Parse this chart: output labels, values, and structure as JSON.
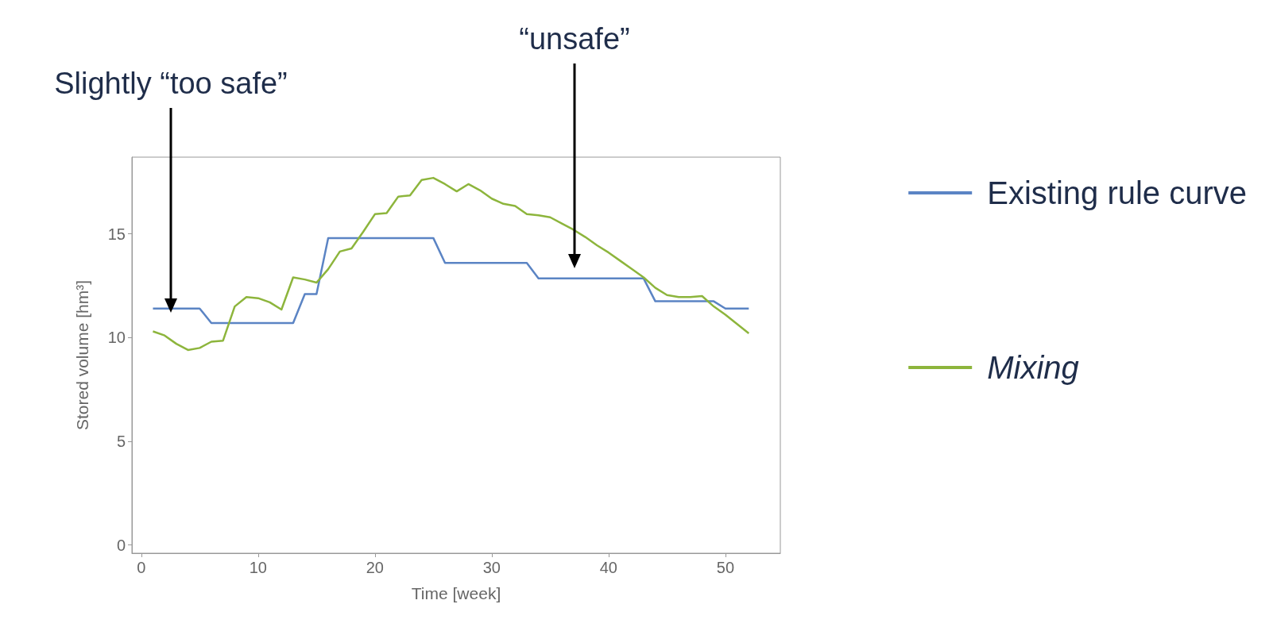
{
  "chart_data": {
    "type": "line",
    "xlabel": "Time [week]",
    "ylabel": "Stored volume [hm³]",
    "x": [
      1,
      2,
      3,
      4,
      5,
      6,
      7,
      8,
      9,
      10,
      11,
      12,
      13,
      14,
      15,
      16,
      17,
      18,
      19,
      20,
      21,
      22,
      23,
      24,
      25,
      26,
      27,
      28,
      29,
      30,
      31,
      32,
      33,
      34,
      35,
      36,
      37,
      38,
      39,
      40,
      41,
      42,
      43,
      44,
      45,
      46,
      47,
      48,
      49,
      50,
      51,
      52
    ],
    "series": [
      {
        "name": "Existing rule curve",
        "color": "#5b84c4",
        "values": [
          11.4,
          11.4,
          11.4,
          11.4,
          11.4,
          10.7,
          10.7,
          10.7,
          10.7,
          10.7,
          10.7,
          10.7,
          10.7,
          12.1,
          12.1,
          14.8,
          14.8,
          14.8,
          14.8,
          14.8,
          14.8,
          14.8,
          14.8,
          14.8,
          14.8,
          13.6,
          13.6,
          13.6,
          13.6,
          13.6,
          13.6,
          13.6,
          13.6,
          12.85,
          12.85,
          12.85,
          12.85,
          12.85,
          12.85,
          12.85,
          12.85,
          12.85,
          12.85,
          11.75,
          11.75,
          11.75,
          11.75,
          11.75,
          11.75,
          11.4,
          11.4,
          11.4
        ]
      },
      {
        "name": "Mixing",
        "color": "#8db53c",
        "values": [
          10.3,
          10.1,
          9.7,
          9.4,
          9.5,
          9.8,
          9.85,
          11.5,
          11.95,
          11.9,
          11.7,
          11.35,
          12.9,
          12.8,
          12.65,
          13.3,
          14.15,
          14.3,
          15.1,
          15.95,
          16.0,
          16.8,
          16.85,
          17.6,
          17.7,
          17.4,
          17.05,
          17.4,
          17.1,
          16.7,
          16.45,
          16.35,
          15.95,
          15.9,
          15.8,
          15.5,
          15.2,
          14.85,
          14.45,
          14.1,
          13.7,
          13.3,
          12.9,
          12.4,
          12.05,
          11.95,
          11.95,
          12.0,
          11.5,
          11.1,
          10.65,
          10.2
        ]
      }
    ],
    "xlim": [
      -0.8,
      54.7
    ],
    "ylim": [
      -0.4,
      18.7
    ],
    "xticks": [
      0,
      10,
      20,
      30,
      40,
      50
    ],
    "yticks": [
      0,
      5,
      10,
      15
    ],
    "grid": false,
    "legend": "right",
    "marker": "none",
    "line_style": "solid",
    "annotations": [
      "Slightly “too safe”",
      "“unsafe”"
    ]
  }
}
